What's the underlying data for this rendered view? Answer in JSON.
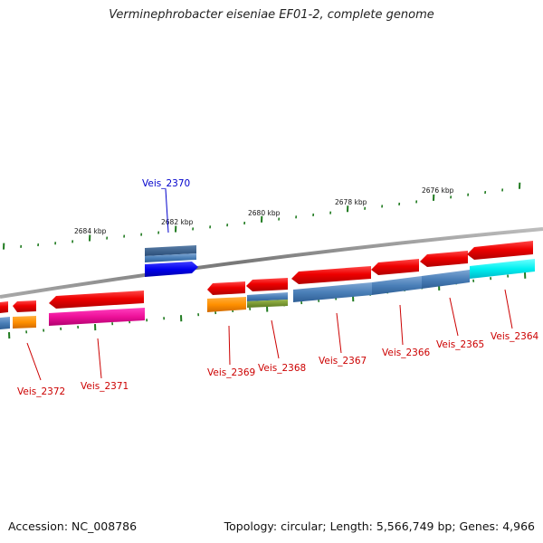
{
  "title": "Verminephrobacter eiseniae EF01-2, complete genome",
  "footer": {
    "accession": "Accession: NC_008786",
    "topology": "Topology: circular; Length: 5,566,749 bp; Genes: 4,966"
  },
  "colors": {
    "backbone": "#8a8a8a",
    "tick": "#1f7a1f",
    "label_default": "#cc0000",
    "label_selected": "#0000cc"
  },
  "scale_labels": [
    "2676 kbp",
    "2678 kbp",
    "2680 kbp",
    "2682 kbp",
    "2684 kbp"
  ],
  "genes": [
    {
      "name": "Veis_2364",
      "color": "#cc0000"
    },
    {
      "name": "Veis_2365",
      "color": "#cc0000"
    },
    {
      "name": "Veis_2366",
      "color": "#cc0000"
    },
    {
      "name": "Veis_2367",
      "color": "#cc0000"
    },
    {
      "name": "Veis_2368",
      "color": "#cc0000"
    },
    {
      "name": "Veis_2369",
      "color": "#cc0000"
    },
    {
      "name": "Veis_2370",
      "color": "#0000cc"
    },
    {
      "name": "Veis_2371",
      "color": "#cc0000"
    },
    {
      "name": "Veis_2372",
      "color": "#cc0000"
    }
  ]
}
